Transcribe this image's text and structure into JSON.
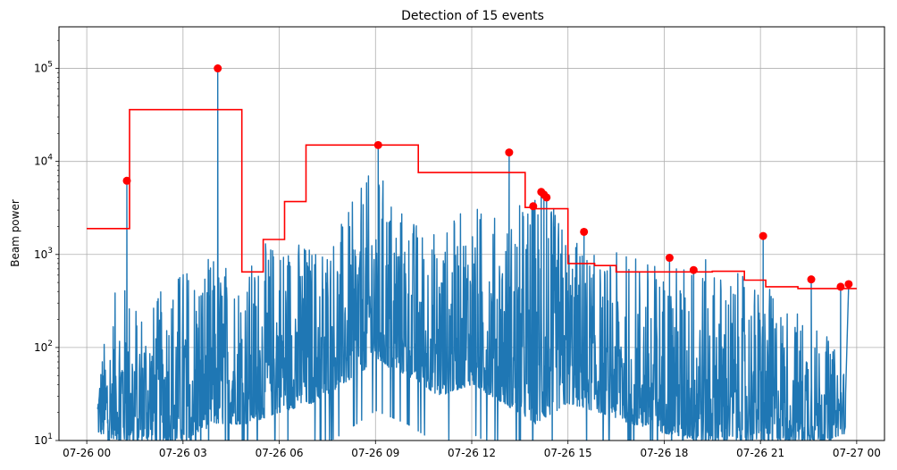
{
  "chart_data": {
    "type": "line",
    "title": "Detection of 15 events",
    "xlabel": "",
    "ylabel": "Beam power",
    "y_scale": "log",
    "ylim": [
      10,
      280000
    ],
    "xlim": [
      "07-25 23:08",
      "07-27 00:52"
    ],
    "grid": true,
    "x_ticks": [
      {
        "value": "07-26 00:00",
        "label": "07-26 00"
      },
      {
        "value": "07-26 03:00",
        "label": "07-26 03"
      },
      {
        "value": "07-26 06:00",
        "label": "07-26 06"
      },
      {
        "value": "07-26 09:00",
        "label": "07-26 09"
      },
      {
        "value": "07-26 12:00",
        "label": "07-26 12"
      },
      {
        "value": "07-26 15:00",
        "label": "07-26 15"
      },
      {
        "value": "07-26 18:00",
        "label": "07-26 18"
      },
      {
        "value": "07-26 21:00",
        "label": "07-26 21"
      },
      {
        "value": "07-27 00:00",
        "label": "07-27 00"
      }
    ],
    "y_ticks": [
      {
        "value": 10,
        "base": "10",
        "exp": "1"
      },
      {
        "value": 100,
        "base": "10",
        "exp": "2"
      },
      {
        "value": 1000,
        "base": "10",
        "exp": "3"
      },
      {
        "value": 10000,
        "base": "10",
        "exp": "4"
      },
      {
        "value": 100000,
        "base": "10",
        "exp": "5"
      }
    ],
    "colors": {
      "beam_power": "#1f77b4",
      "threshold": "#ff0000",
      "events": "#ff0000",
      "grid": "#b0b0b0"
    },
    "beam_power_envelope": {
      "x": [
        "07-26 00:20",
        "07-26 01:00",
        "07-26 02:00",
        "07-26 03:00",
        "07-26 04:00",
        "07-26 05:00",
        "07-26 06:00",
        "07-26 07:00",
        "07-26 08:00",
        "07-26 09:00",
        "07-26 10:00",
        "07-26 11:00",
        "07-26 12:00",
        "07-26 13:00",
        "07-26 14:00",
        "07-26 15:00",
        "07-26 16:00",
        "07-26 17:00",
        "07-26 18:00",
        "07-26 19:00",
        "07-26 20:00",
        "07-26 21:00",
        "07-26 22:00",
        "07-26 23:00",
        "07-26 23:40"
      ],
      "peaks": [
        60,
        600,
        300,
        900,
        1000,
        800,
        2000,
        1500,
        2500,
        10000,
        3000,
        1800,
        4000,
        2500,
        6000,
        2000,
        900,
        1200,
        800,
        1000,
        700,
        500,
        300,
        150,
        60
      ],
      "floor": [
        12,
        10,
        10,
        10,
        15,
        15,
        20,
        25,
        40,
        70,
        50,
        30,
        40,
        25,
        15,
        25,
        20,
        15,
        12,
        10,
        10,
        10,
        10,
        10,
        12
      ]
    },
    "threshold_steps": [
      {
        "x_start": "07-26 00:00",
        "x_end": "07-26 01:20",
        "value": 1900
      },
      {
        "x_start": "07-26 01:20",
        "x_end": "07-26 04:50",
        "value": 36000
      },
      {
        "x_start": "07-26 04:50",
        "x_end": "07-26 05:30",
        "value": 650
      },
      {
        "x_start": "07-26 05:30",
        "x_end": "07-26 06:10",
        "value": 1450
      },
      {
        "x_start": "07-26 06:10",
        "x_end": "07-26 06:50",
        "value": 3700
      },
      {
        "x_start": "07-26 06:50",
        "x_end": "07-26 10:20",
        "value": 15000
      },
      {
        "x_start": "07-26 10:20",
        "x_end": "07-26 13:40",
        "value": 7600
      },
      {
        "x_start": "07-26 13:40",
        "x_end": "07-26 14:00",
        "value": 3200
      },
      {
        "x_start": "07-26 14:00",
        "x_end": "07-26 15:00",
        "value": 3100
      },
      {
        "x_start": "07-26 15:00",
        "x_end": "07-26 15:50",
        "value": 800
      },
      {
        "x_start": "07-26 15:50",
        "x_end": "07-26 16:30",
        "value": 760
      },
      {
        "x_start": "07-26 16:30",
        "x_end": "07-26 19:30",
        "value": 650
      },
      {
        "x_start": "07-26 19:30",
        "x_end": "07-26 20:30",
        "value": 660
      },
      {
        "x_start": "07-26 20:30",
        "x_end": "07-26 21:10",
        "value": 530
      },
      {
        "x_start": "07-26 21:10",
        "x_end": "07-26 22:10",
        "value": 450
      },
      {
        "x_start": "07-26 22:10",
        "x_end": "07-27 00:00",
        "value": 430
      }
    ],
    "events": [
      {
        "x": "07-26 01:15",
        "y": 6200
      },
      {
        "x": "07-26 04:05",
        "y": 100000
      },
      {
        "x": "07-26 09:05",
        "y": 15000
      },
      {
        "x": "07-26 13:10",
        "y": 12500
      },
      {
        "x": "07-26 13:55",
        "y": 3300
      },
      {
        "x": "07-26 14:10",
        "y": 4700
      },
      {
        "x": "07-26 14:15",
        "y": 4400
      },
      {
        "x": "07-26 14:20",
        "y": 4100
      },
      {
        "x": "07-26 15:30",
        "y": 1750
      },
      {
        "x": "07-26 18:10",
        "y": 920
      },
      {
        "x": "07-26 18:55",
        "y": 680
      },
      {
        "x": "07-26 21:05",
        "y": 1580
      },
      {
        "x": "07-26 22:35",
        "y": 540
      },
      {
        "x": "07-26 23:30",
        "y": 450
      },
      {
        "x": "07-26 23:45",
        "y": 480
      }
    ]
  }
}
